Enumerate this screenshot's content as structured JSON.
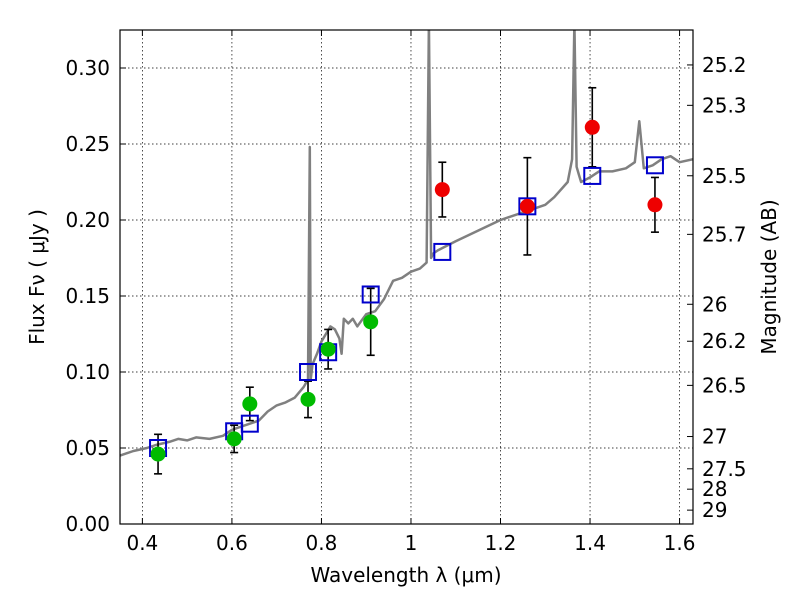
{
  "chart_data": {
    "type": "scatter",
    "xlabel": "Wavelength  λ (μm)",
    "ylabel": "Flux  Fν  ( μJy )",
    "y2label": "Magnitude (AB)",
    "xlim": [
      0.35,
      1.63
    ],
    "ylim": [
      0.0,
      0.325
    ],
    "grid": true,
    "x_ticks": [
      {
        "value": 0.4,
        "label": "0.4"
      },
      {
        "value": 0.6,
        "label": "0.6"
      },
      {
        "value": 0.8,
        "label": "0.8"
      },
      {
        "value": 1.0,
        "label": "1"
      },
      {
        "value": 1.2,
        "label": "1.2"
      },
      {
        "value": 1.4,
        "label": "1.4"
      },
      {
        "value": 1.6,
        "label": "1.6"
      }
    ],
    "y_ticks": [
      {
        "value": 0.0,
        "label": "0.00"
      },
      {
        "value": 0.05,
        "label": "0.05"
      },
      {
        "value": 0.1,
        "label": "0.10"
      },
      {
        "value": 0.15,
        "label": "0.15"
      },
      {
        "value": 0.2,
        "label": "0.20"
      },
      {
        "value": 0.25,
        "label": "0.25"
      },
      {
        "value": 0.3,
        "label": "0.30"
      }
    ],
    "y2_ticks": [
      {
        "value": 25.2,
        "label": "25.2"
      },
      {
        "value": 25.3,
        "label": "25.3"
      },
      {
        "value": 25.5,
        "label": "25.5"
      },
      {
        "value": 25.7,
        "label": "25.7"
      },
      {
        "value": 26.0,
        "label": "26"
      },
      {
        "value": 26.2,
        "label": "26.2"
      },
      {
        "value": 26.5,
        "label": "26.5"
      },
      {
        "value": 27.0,
        "label": "27"
      },
      {
        "value": 27.5,
        "label": "27.5"
      },
      {
        "value": 28.0,
        "label": "28"
      },
      {
        "value": 29.0,
        "label": "29"
      }
    ],
    "model_spectrum": {
      "color": "#808080",
      "x": [
        0.35,
        0.38,
        0.41,
        0.43,
        0.46,
        0.48,
        0.5,
        0.52,
        0.55,
        0.58,
        0.6,
        0.62,
        0.64,
        0.66,
        0.68,
        0.7,
        0.72,
        0.74,
        0.76,
        0.77,
        0.774,
        0.776,
        0.78,
        0.79,
        0.8,
        0.81,
        0.82,
        0.83,
        0.84,
        0.845,
        0.85,
        0.86,
        0.87,
        0.88,
        0.9,
        0.92,
        0.94,
        0.96,
        0.98,
        1.0,
        1.02,
        1.035,
        1.04,
        1.045,
        1.05,
        1.06,
        1.08,
        1.1,
        1.15,
        1.2,
        1.25,
        1.3,
        1.32,
        1.35,
        1.36,
        1.365,
        1.37,
        1.375,
        1.38,
        1.4,
        1.42,
        1.45,
        1.48,
        1.5,
        1.51,
        1.52,
        1.54,
        1.56,
        1.58,
        1.6,
        1.63
      ],
      "y": [
        0.045,
        0.048,
        0.05,
        0.052,
        0.054,
        0.056,
        0.055,
        0.057,
        0.056,
        0.058,
        0.062,
        0.064,
        0.066,
        0.068,
        0.074,
        0.078,
        0.08,
        0.083,
        0.09,
        0.095,
        0.248,
        0.095,
        0.105,
        0.112,
        0.12,
        0.125,
        0.13,
        0.128,
        0.122,
        0.112,
        0.135,
        0.132,
        0.135,
        0.13,
        0.138,
        0.14,
        0.148,
        0.16,
        0.162,
        0.166,
        0.168,
        0.172,
        0.33,
        0.175,
        0.178,
        0.18,
        0.183,
        0.186,
        0.193,
        0.2,
        0.205,
        0.21,
        0.215,
        0.225,
        0.24,
        0.33,
        0.235,
        0.23,
        0.225,
        0.228,
        0.232,
        0.232,
        0.234,
        0.238,
        0.265,
        0.234,
        0.236,
        0.24,
        0.242,
        0.238,
        0.24
      ]
    },
    "series": [
      {
        "marker": "open-square",
        "color": "#0000cc",
        "points": [
          {
            "x": 0.435,
            "y": 0.05
          },
          {
            "x": 0.605,
            "y": 0.061
          },
          {
            "x": 0.64,
            "y": 0.066
          },
          {
            "x": 0.77,
            "y": 0.1
          },
          {
            "x": 0.815,
            "y": 0.113
          },
          {
            "x": 0.91,
            "y": 0.151
          },
          {
            "x": 1.07,
            "y": 0.179
          },
          {
            "x": 1.26,
            "y": 0.209
          },
          {
            "x": 1.405,
            "y": 0.229
          },
          {
            "x": 1.545,
            "y": 0.236
          }
        ]
      },
      {
        "marker": "filled-circle",
        "color": "#00bb00",
        "points": [
          {
            "x": 0.435,
            "y": 0.046,
            "err": 0.013
          },
          {
            "x": 0.605,
            "y": 0.056,
            "err": 0.009
          },
          {
            "x": 0.64,
            "y": 0.079,
            "err": 0.011
          },
          {
            "x": 0.77,
            "y": 0.082,
            "err": 0.012
          },
          {
            "x": 0.815,
            "y": 0.115,
            "err": 0.013
          },
          {
            "x": 0.91,
            "y": 0.133,
            "err": 0.022
          }
        ]
      },
      {
        "marker": "filled-circle",
        "color": "#ee0000",
        "points": [
          {
            "x": 1.07,
            "y": 0.22,
            "err": 0.018
          },
          {
            "x": 1.26,
            "y": 0.209,
            "err": 0.032
          },
          {
            "x": 1.405,
            "y": 0.261,
            "err": 0.026
          },
          {
            "x": 1.545,
            "y": 0.21,
            "err": 0.018
          }
        ]
      }
    ]
  }
}
